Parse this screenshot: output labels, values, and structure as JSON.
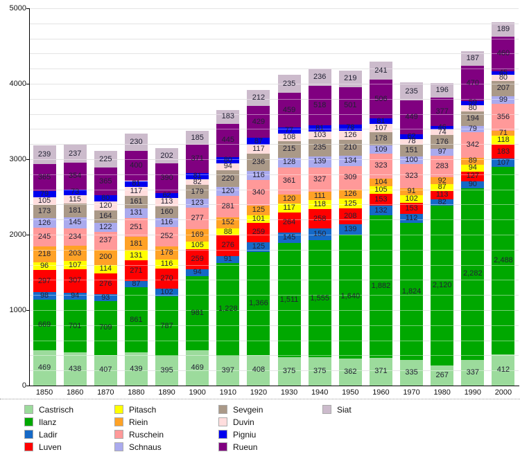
{
  "chart_data": {
    "type": "bar",
    "stacked": true,
    "title": "",
    "xlabel": "",
    "ylabel": "",
    "x": [
      "1850",
      "1860",
      "1870",
      "1880",
      "1890",
      "1900",
      "1910",
      "1920",
      "1930",
      "1940",
      "1950",
      "1960",
      "1970",
      "1980",
      "1990",
      "2000"
    ],
    "ylim": [
      0,
      5000
    ],
    "y_major_ticks": [
      0,
      1000,
      2000,
      3000,
      4000,
      5000
    ],
    "y_minor_step": 200,
    "grid": true,
    "legend_position": "bottom",
    "series": [
      {
        "name": "Castrisch",
        "color": "#9CDB9C",
        "values": [
          469,
          438,
          407,
          439,
          395,
          469,
          397,
          408,
          375,
          375,
          362,
          371,
          335,
          267,
          337,
          412
        ]
      },
      {
        "name": "Ilanz",
        "color": "#00A800",
        "values": [
          669,
          701,
          709,
          861,
          787,
          981,
          1228,
          1366,
          1511,
          1555,
          1640,
          1882,
          1824,
          2120,
          2282,
          2488
        ]
      },
      {
        "name": "Ladir",
        "color": "#1569C7",
        "values": [
          98,
          94,
          93,
          87,
          102,
          94,
          91,
          125,
          145,
          150,
          139,
          132,
          112,
          82,
          90,
          107
        ]
      },
      {
        "name": "Luven",
        "color": "#FF0000",
        "values": [
          297,
          307,
          276,
          271,
          270,
          259,
          276,
          259,
          264,
          258,
          208,
          153,
          153,
          113,
          127,
          183
        ]
      },
      {
        "name": "Pitasch",
        "color": "#FFFF00",
        "values": [
          96,
          107,
          114,
          131,
          116,
          105,
          88,
          101,
          117,
          118,
          125,
          105,
          102,
          87,
          94,
          118
        ]
      },
      {
        "name": "Riein",
        "color": "#FFA226",
        "values": [
          218,
          203,
          200,
          181,
          178,
          169,
          152,
          125,
          120,
          111,
          126,
          104,
          91,
          92,
          89,
          71
        ]
      },
      {
        "name": "Ruschein",
        "color": "#FF9999",
        "values": [
          245,
          234,
          237,
          251,
          252,
          277,
          281,
          340,
          361,
          327,
          309,
          323,
          323,
          283,
          342,
          356
        ]
      },
      {
        "name": "Schnaus",
        "color": "#AAAAEE",
        "values": [
          126,
          145,
          122,
          131,
          116,
          123,
          120,
          116,
          128,
          139,
          134,
          109,
          100,
          97,
          79,
          99
        ]
      },
      {
        "name": "Sevgein",
        "color": "#AA9988",
        "values": [
          173,
          181,
          164,
          161,
          160,
          179,
          220,
          236,
          215,
          235,
          210,
          178,
          151,
          176,
          194,
          207
        ]
      },
      {
        "name": "Duvin",
        "color": "#FFDDDD",
        "values": [
          105,
          115,
          120,
          117,
          113,
          82,
          94,
          117,
          108,
          103,
          126,
          107,
          78,
          74,
          80,
          80
        ]
      },
      {
        "name": "Pigniu",
        "color": "#0000EE",
        "values": [
          79,
          73,
          80,
          81,
          62,
          81,
          80,
          87,
          77,
          81,
          78,
          81,
          62,
          46,
          59,
          45
        ]
      },
      {
        "name": "Rueun",
        "color": "#800080",
        "values": [
          365,
          354,
          365,
          400,
          390,
          371,
          445,
          429,
          459,
          518,
          501,
          506,
          449,
          377,
          470,
          460
        ]
      },
      {
        "name": "Siat",
        "color": "#CCBBCC",
        "values": [
          239,
          237,
          225,
          230,
          202,
          185,
          183,
          212,
          235,
          236,
          219,
          241,
          235,
          196,
          187,
          189
        ]
      }
    ],
    "legend_columns": [
      [
        "Castrisch",
        "Ilanz",
        "Ladir",
        "Luven"
      ],
      [
        "Pitasch",
        "Riein",
        "Ruschein",
        "Schnaus"
      ],
      [
        "Sevgein",
        "Duvin",
        "Pigniu",
        "Rueun"
      ],
      [
        "Siat"
      ]
    ]
  }
}
